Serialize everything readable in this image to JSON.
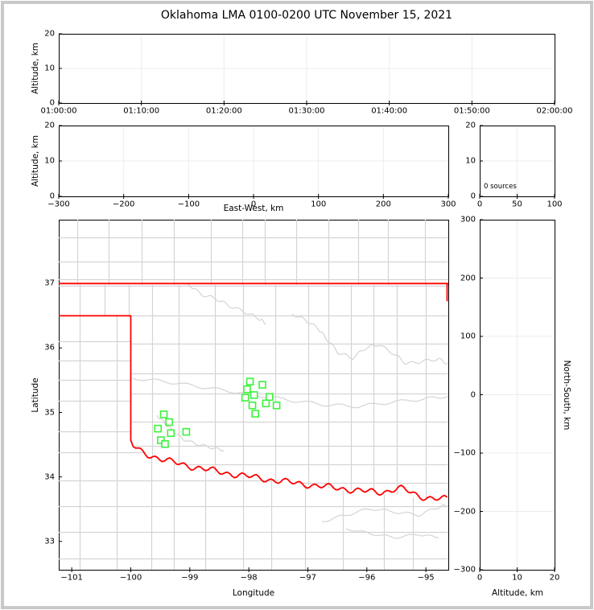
{
  "title": "Oklahoma LMA 0100-0200 UTC November 15, 2021",
  "colors": {
    "state_border": "#ff0000",
    "county_line": "#d4d4d4",
    "station_marker": "#3cf23c",
    "gridline": "#ececec",
    "axis": "#000000",
    "frame": "#c9c9c9"
  },
  "chart_data": [
    {
      "id": "time_height",
      "type": "scatter",
      "ylabel": "Altitude, km",
      "xlabel": "",
      "xlim": [
        0,
        3600
      ],
      "ylim": [
        0,
        20
      ],
      "xticks": [
        {
          "v": 0,
          "label": "01:00:00"
        },
        {
          "v": 600,
          "label": "01:10:00"
        },
        {
          "v": 1200,
          "label": "01:20:00"
        },
        {
          "v": 1800,
          "label": "01:30:00"
        },
        {
          "v": 2400,
          "label": "01:40:00"
        },
        {
          "v": 3000,
          "label": "01:50:00"
        },
        {
          "v": 3600,
          "label": "02:00:00"
        }
      ],
      "yticks": [
        {
          "v": 0,
          "label": "0"
        },
        {
          "v": 10,
          "label": "10"
        },
        {
          "v": 20,
          "label": "20"
        }
      ],
      "points": [],
      "grid": true
    },
    {
      "id": "ew_height",
      "type": "scatter",
      "ylabel": "Altitude, km",
      "xlabel": "East-West, km",
      "xlim": [
        -300,
        300
      ],
      "ylim": [
        0,
        20
      ],
      "xticks": [
        {
          "v": -300,
          "label": "−300"
        },
        {
          "v": -200,
          "label": "−200"
        },
        {
          "v": -100,
          "label": "−100"
        },
        {
          "v": 0,
          "label": "0"
        },
        {
          "v": 100,
          "label": "100"
        },
        {
          "v": 200,
          "label": "200"
        },
        {
          "v": 300,
          "label": "300"
        }
      ],
      "yticks": [
        {
          "v": 0,
          "label": "0"
        },
        {
          "v": 10,
          "label": "10"
        },
        {
          "v": 20,
          "label": "20"
        }
      ],
      "points": [],
      "grid": true
    },
    {
      "id": "alt_histogram",
      "type": "scatter",
      "annotation": "0 sources",
      "xlabel": "",
      "ylabel": "",
      "xlim": [
        0,
        100
      ],
      "ylim": [
        0,
        20
      ],
      "xticks": [
        {
          "v": 0,
          "label": "0"
        },
        {
          "v": 50,
          "label": "50"
        },
        {
          "v": 100,
          "label": "100"
        }
      ],
      "yticks": [
        {
          "v": 0,
          "label": "0"
        },
        {
          "v": 10,
          "label": "10"
        },
        {
          "v": 20,
          "label": "20"
        }
      ],
      "points": [],
      "grid": true
    },
    {
      "id": "map",
      "type": "scatter",
      "xlabel": "Longitude",
      "ylabel": "Latitude",
      "xlim": [
        -101.22,
        -94.62
      ],
      "ylim": [
        32.56,
        37.99
      ],
      "xticks": [
        {
          "v": -101,
          "label": "−101"
        },
        {
          "v": -100,
          "label": "−100"
        },
        {
          "v": -99,
          "label": "−99"
        },
        {
          "v": -98,
          "label": "−98"
        },
        {
          "v": -97,
          "label": "−97"
        },
        {
          "v": -96,
          "label": "−96"
        },
        {
          "v": -95,
          "label": "−95"
        }
      ],
      "yticks": [
        {
          "v": 33,
          "label": "33"
        },
        {
          "v": 34,
          "label": "34"
        },
        {
          "v": 35,
          "label": "35"
        },
        {
          "v": 36,
          "label": "36"
        },
        {
          "v": 37,
          "label": "37"
        }
      ],
      "grid": false,
      "marker": "open-square",
      "stations": [
        [
          -97.98,
          35.48
        ],
        [
          -97.77,
          35.43
        ],
        [
          -98.03,
          35.36
        ],
        [
          -97.91,
          35.27
        ],
        [
          -98.06,
          35.23
        ],
        [
          -97.94,
          35.11
        ],
        [
          -97.71,
          35.14
        ],
        [
          -97.65,
          35.24
        ],
        [
          -97.53,
          35.11
        ],
        [
          -97.89,
          34.98
        ],
        [
          -99.44,
          34.97
        ],
        [
          -99.35,
          34.85
        ],
        [
          -99.54,
          34.75
        ],
        [
          -99.32,
          34.68
        ],
        [
          -99.06,
          34.7
        ],
        [
          -99.49,
          34.57
        ],
        [
          -99.42,
          34.51
        ]
      ]
    },
    {
      "id": "ns_height",
      "type": "scatter",
      "xlabel": "Altitude, km",
      "ylabel": "North-South, km",
      "xlim": [
        0,
        20
      ],
      "ylim": [
        -300,
        300
      ],
      "xticks": [
        {
          "v": 0,
          "label": "0"
        },
        {
          "v": 10,
          "label": "10"
        },
        {
          "v": 20,
          "label": "20"
        }
      ],
      "yticks": [
        {
          "v": 300,
          "label": "300"
        },
        {
          "v": 200,
          "label": "200"
        },
        {
          "v": 100,
          "label": "100"
        },
        {
          "v": 0,
          "label": "0"
        },
        {
          "v": -100,
          "label": "−100"
        },
        {
          "v": -200,
          "label": "−200"
        },
        {
          "v": -300,
          "label": "−300"
        }
      ],
      "points": [],
      "grid": true
    }
  ]
}
